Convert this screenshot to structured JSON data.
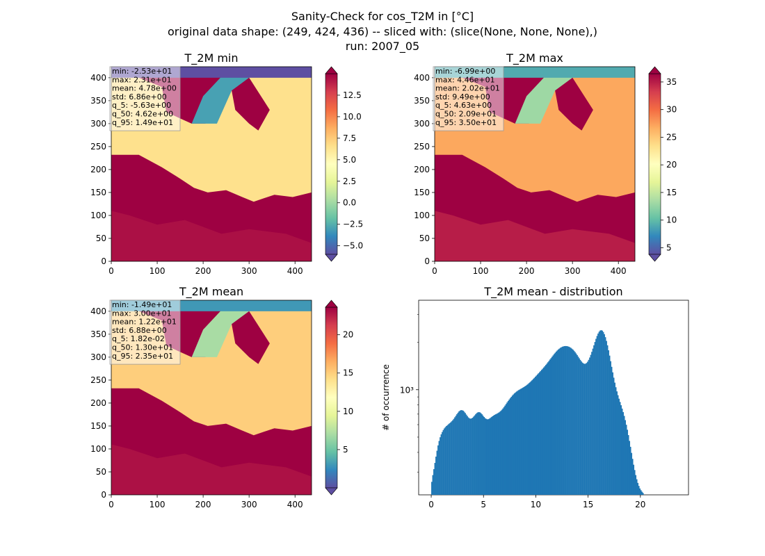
{
  "figure": {
    "title_lines": [
      "Sanity-Check for cos_T2M in [°C]",
      "original data shape: (249, 424, 436) -- sliced with: (slice(None, None, None),)",
      "run: 2007_05"
    ]
  },
  "colors": {
    "histogram_bar": "#1f77b4",
    "colormap": "Spectral_r",
    "colormap_stops": [
      "#5e4fa2",
      "#3288bd",
      "#66c2a5",
      "#abdda4",
      "#e6f598",
      "#ffffbf",
      "#fee08b",
      "#fdae61",
      "#f46d43",
      "#d53e4f",
      "#9e0142"
    ],
    "sea_fill": "#9e0142"
  },
  "chart_data": [
    {
      "type": "heatmap",
      "name": "T_2M min",
      "title": "T_2M min",
      "xlim": [
        0,
        436
      ],
      "ylim": [
        0,
        424
      ],
      "x_ticks": [
        0,
        100,
        200,
        300,
        400
      ],
      "y_ticks": [
        0,
        50,
        100,
        150,
        200,
        250,
        300,
        350,
        400
      ],
      "colorbar": {
        "vmin": -6.0,
        "vmax": 15.0,
        "ticks": [
          -5.0,
          -2.5,
          0.0,
          2.5,
          5.0,
          7.5,
          10.0,
          12.5
        ],
        "tick_labels": [
          "−5.0",
          "−2.5",
          "0.0",
          "2.5",
          "5.0",
          "7.5",
          "10.0",
          "12.5"
        ],
        "extend": "both"
      },
      "stats": [
        "min: -2.53e+01",
        "max: 2.31e+01",
        "mean: 4.78e+00",
        "std: 6.86e+00",
        "q_5: -5.63e+00",
        "q_50: 4.62e+00",
        "q_95: 1.49e+01"
      ],
      "land_value": 6.5,
      "north_value": -3.0
    },
    {
      "type": "heatmap",
      "name": "T_2M max",
      "title": "T_2M max",
      "xlim": [
        0,
        436
      ],
      "ylim": [
        0,
        424
      ],
      "x_ticks": [
        0,
        100,
        200,
        300,
        400
      ],
      "y_ticks": [
        0,
        50,
        100,
        150,
        200,
        250,
        300,
        350,
        400
      ],
      "colorbar": {
        "vmin": 3.8,
        "vmax": 36.5,
        "ticks": [
          5,
          10,
          15,
          20,
          25,
          30,
          35
        ],
        "tick_labels": [
          "5",
          "10",
          "15",
          "20",
          "25",
          "30",
          "35"
        ],
        "extend": "both"
      },
      "stats": [
        "min: -6.99e+00",
        "max: 4.46e+01",
        "mean: 2.02e+01",
        "std: 9.49e+00",
        "q_5: 4.63e+00",
        "q_50: 2.09e+01",
        "q_95: 3.50e+01"
      ],
      "land_value": 27.0,
      "north_value": 13.0
    },
    {
      "type": "heatmap",
      "name": "T_2M mean",
      "title": "T_2M mean",
      "xlim": [
        0,
        436
      ],
      "ylim": [
        0,
        424
      ],
      "x_ticks": [
        0,
        100,
        200,
        300,
        400
      ],
      "y_ticks": [
        0,
        50,
        100,
        150,
        200,
        250,
        300,
        350,
        400
      ],
      "colorbar": {
        "vmin": 0.0,
        "vmax": 23.6,
        "ticks": [
          5,
          10,
          15,
          20
        ],
        "tick_labels": [
          "5",
          "10",
          "15",
          "20"
        ],
        "extend": "both"
      },
      "stats": [
        "min: -1.49e+01",
        "max: 3.00e+01",
        "mean: 1.22e+01",
        "std: 6.88e+00",
        "q_5: 1.82e-02",
        "q_50: 1.30e+01",
        "q_95: 2.35e+01"
      ],
      "land_value": 15.0,
      "north_value": 7.0
    },
    {
      "type": "bar",
      "name": "T_2M mean - distribution",
      "title": "T_2M mean - distribution",
      "ylabel": "# of occurrence",
      "yscale": "log",
      "xlim": [
        -1.2,
        24.6
      ],
      "ylim": [
        215,
        3700
      ],
      "x_ticks": [
        0,
        5,
        10,
        15,
        20
      ],
      "y_ticks": [
        1000
      ],
      "y_tick_labels": [
        "10³"
      ],
      "bin_width": 0.1,
      "x_start": 0.0,
      "values": [
        260,
        287,
        313,
        343,
        376,
        410,
        443,
        473,
        499,
        521,
        539,
        555,
        568,
        579,
        588,
        596,
        604,
        612,
        620,
        630,
        640,
        653,
        668,
        683,
        699,
        714,
        728,
        737,
        742,
        741,
        736,
        725,
        711,
        695,
        680,
        667,
        658,
        655,
        657,
        664,
        675,
        687,
        700,
        711,
        718,
        721,
        718,
        710,
        698,
        684,
        671,
        660,
        653,
        649,
        650,
        655,
        662,
        670,
        678,
        685,
        692,
        698,
        703,
        709,
        716,
        724,
        734,
        746,
        760,
        776,
        793,
        811,
        830,
        848,
        866,
        884,
        901,
        918,
        933,
        948,
        961,
        973,
        984,
        994,
        1003,
        1012,
        1021,
        1030,
        1040,
        1050,
        1061,
        1074,
        1087,
        1102,
        1118,
        1134,
        1152,
        1170,
        1189,
        1209,
        1229,
        1250,
        1271,
        1292,
        1314,
        1337,
        1360,
        1384,
        1410,
        1436,
        1464,
        1493,
        1523,
        1555,
        1587,
        1619,
        1652,
        1685,
        1717,
        1747,
        1776,
        1802,
        1825,
        1846,
        1863,
        1876,
        1886,
        1892,
        1894,
        1892,
        1886,
        1876,
        1862,
        1844,
        1822,
        1797,
        1767,
        1734,
        1698,
        1660,
        1621,
        1583,
        1546,
        1514,
        1487,
        1469,
        1460,
        1463,
        1479,
        1507,
        1548,
        1601,
        1665,
        1740,
        1824,
        1915,
        2010,
        2105,
        2195,
        2274,
        2336,
        2376,
        2389,
        2372,
        2326,
        2253,
        2156,
        2041,
        1914,
        1780,
        1647,
        1518,
        1398,
        1289,
        1193,
        1109,
        1037,
        976,
        923,
        877,
        836,
        797,
        759,
        721,
        682,
        641,
        599,
        557,
        515,
        473,
        434,
        397,
        364,
        334,
        309,
        287,
        270,
        256,
        245,
        236,
        230,
        225,
        221
      ]
    }
  ]
}
